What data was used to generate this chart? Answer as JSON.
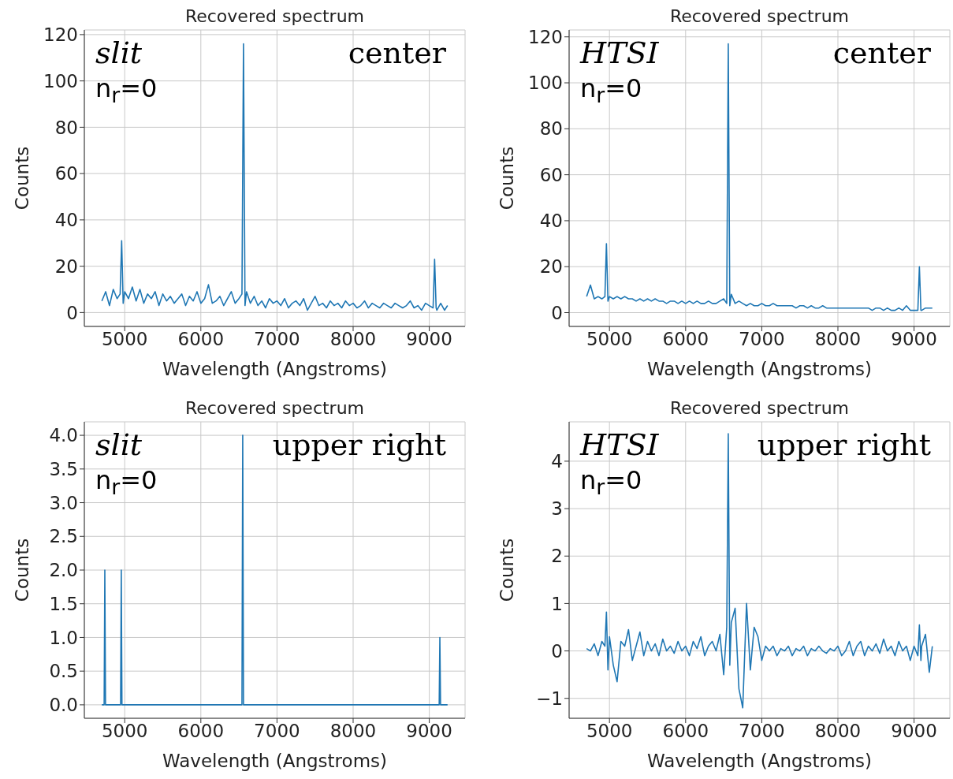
{
  "chart_data": [
    {
      "type": "line",
      "title": "Recovered spectrum",
      "xlabel": "Wavelength (Angstroms)",
      "ylabel": "Counts",
      "annotations": [
        "slit",
        "n$_{r}$=0",
        "center"
      ],
      "grid": true,
      "marker": "none",
      "line_style": "solid",
      "x": [
        4700,
        4750,
        4800,
        4850,
        4900,
        4940,
        4960,
        4980,
        5000,
        5050,
        5100,
        5150,
        5200,
        5250,
        5300,
        5350,
        5400,
        5450,
        5500,
        5550,
        5600,
        5650,
        5700,
        5750,
        5800,
        5850,
        5900,
        5950,
        6000,
        6050,
        6100,
        6150,
        6200,
        6250,
        6300,
        6350,
        6400,
        6450,
        6500,
        6540,
        6560,
        6580,
        6600,
        6650,
        6700,
        6750,
        6800,
        6850,
        6900,
        6950,
        7000,
        7050,
        7100,
        7150,
        7200,
        7250,
        7300,
        7350,
        7400,
        7450,
        7500,
        7550,
        7600,
        7650,
        7700,
        7750,
        7800,
        7850,
        7900,
        7950,
        8000,
        8050,
        8100,
        8150,
        8200,
        8250,
        8300,
        8350,
        8400,
        8450,
        8500,
        8550,
        8600,
        8650,
        8700,
        8750,
        8800,
        8850,
        8900,
        8950,
        9000,
        9050,
        9070,
        9090,
        9100,
        9150,
        9200,
        9240
      ],
      "series": [
        {
          "color": "#1f77b4",
          "values": [
            5,
            9,
            3,
            10,
            6,
            8,
            31,
            4,
            9,
            6,
            11,
            5,
            10,
            4,
            8,
            6,
            9,
            3,
            8,
            5,
            7,
            4,
            6,
            8,
            3,
            7,
            5,
            9,
            4,
            6,
            12,
            4,
            5,
            7,
            3,
            6,
            9,
            4,
            6,
            8,
            116,
            3,
            9,
            4,
            7,
            3,
            5,
            2,
            6,
            4,
            5,
            3,
            6,
            2,
            4,
            5,
            3,
            6,
            1,
            4,
            7,
            3,
            4,
            2,
            5,
            3,
            4,
            2,
            5,
            3,
            4,
            2,
            3,
            5,
            2,
            4,
            3,
            2,
            4,
            3,
            2,
            4,
            3,
            2,
            3,
            5,
            2,
            3,
            1,
            4,
            3,
            2,
            23,
            2,
            1,
            4,
            1,
            3
          ]
        }
      ],
      "xlim": [
        4470,
        9470
      ],
      "xticks": [
        5000,
        6000,
        7000,
        8000,
        9000
      ],
      "ylim": [
        -6,
        122
      ],
      "yticks": [
        0,
        20,
        40,
        60,
        80,
        100,
        120
      ]
    },
    {
      "type": "line",
      "title": "Recovered spectrum",
      "xlabel": "Wavelength (Angstroms)",
      "ylabel": "Counts",
      "annotations": [
        "HTSI",
        "n$_{r}$=0",
        "center"
      ],
      "grid": true,
      "marker": "none",
      "line_style": "solid",
      "x": [
        4700,
        4750,
        4800,
        4850,
        4900,
        4940,
        4960,
        4980,
        5000,
        5050,
        5100,
        5150,
        5200,
        5250,
        5300,
        5350,
        5400,
        5450,
        5500,
        5550,
        5600,
        5650,
        5700,
        5750,
        5800,
        5850,
        5900,
        5950,
        6000,
        6050,
        6100,
        6150,
        6200,
        6250,
        6300,
        6350,
        6400,
        6450,
        6500,
        6540,
        6560,
        6580,
        6600,
        6650,
        6700,
        6750,
        6800,
        6850,
        6900,
        6950,
        7000,
        7050,
        7100,
        7150,
        7200,
        7250,
        7300,
        7350,
        7400,
        7450,
        7500,
        7550,
        7600,
        7650,
        7700,
        7750,
        7800,
        7850,
        7900,
        7950,
        8000,
        8050,
        8100,
        8150,
        8200,
        8250,
        8300,
        8350,
        8400,
        8450,
        8500,
        8550,
        8600,
        8650,
        8700,
        8750,
        8800,
        8850,
        8900,
        8950,
        9000,
        9050,
        9070,
        9090,
        9100,
        9150,
        9200,
        9240
      ],
      "series": [
        {
          "color": "#1f77b4",
          "values": [
            7,
            12,
            6,
            7,
            6,
            7,
            30,
            5,
            7,
            6,
            7,
            6,
            7,
            6,
            6,
            5,
            6,
            5,
            6,
            5,
            6,
            5,
            5,
            4,
            5,
            5,
            4,
            5,
            4,
            5,
            4,
            5,
            4,
            4,
            5,
            4,
            4,
            5,
            6,
            4,
            117,
            3,
            8,
            4,
            5,
            4,
            3,
            4,
            3,
            3,
            4,
            3,
            3,
            4,
            3,
            3,
            3,
            3,
            3,
            2,
            3,
            3,
            2,
            3,
            2,
            2,
            3,
            2,
            2,
            2,
            2,
            2,
            2,
            2,
            2,
            2,
            2,
            2,
            2,
            1,
            2,
            2,
            1,
            2,
            1,
            1,
            2,
            1,
            3,
            1,
            1,
            1,
            20,
            1,
            1,
            2,
            2,
            2
          ]
        }
      ],
      "xlim": [
        4470,
        9470
      ],
      "xticks": [
        5000,
        6000,
        7000,
        8000,
        9000
      ],
      "ylim": [
        -6,
        123
      ],
      "yticks": [
        0,
        20,
        40,
        60,
        80,
        100,
        120
      ]
    },
    {
      "type": "line",
      "title": "Recovered spectrum",
      "xlabel": "Wavelength (Angstroms)",
      "ylabel": "Counts",
      "annotations": [
        "slit",
        "n$_{r}$=0",
        "upper right"
      ],
      "grid": true,
      "marker": "none",
      "line_style": "solid",
      "x": [
        4700,
        4730,
        4739,
        4748,
        4946,
        4955,
        4964,
        6540,
        6550,
        6560,
        9130,
        9139,
        9148,
        9240
      ],
      "series": [
        {
          "color": "#1f77b4",
          "values": [
            0,
            0,
            2,
            0,
            0,
            2,
            0,
            0,
            4,
            0,
            0,
            1,
            0,
            0
          ]
        }
      ],
      "xlim": [
        4470,
        9470
      ],
      "xticks": [
        5000,
        6000,
        7000,
        8000,
        9000
      ],
      "ylim": [
        -0.2,
        4.2
      ],
      "yticks": [
        {
          "value": 0,
          "label": "0.0"
        },
        0.5,
        {
          "value": 1,
          "label": "1.0"
        },
        1.5,
        {
          "value": 2,
          "label": "2.0"
        },
        2.5,
        {
          "value": 3,
          "label": "3.0"
        },
        3.5,
        {
          "value": 4,
          "label": "4.0"
        }
      ]
    },
    {
      "type": "line",
      "title": "Recovered spectrum",
      "xlabel": "Wavelength (Angstroms)",
      "ylabel": "Counts",
      "annotations": [
        "HTSI",
        "n$_{r}$=0",
        "upper right"
      ],
      "grid": true,
      "marker": "none",
      "line_style": "solid",
      "x": [
        4700,
        4750,
        4800,
        4850,
        4900,
        4940,
        4960,
        4980,
        5000,
        5050,
        5100,
        5150,
        5200,
        5250,
        5300,
        5350,
        5400,
        5450,
        5500,
        5550,
        5600,
        5650,
        5700,
        5750,
        5800,
        5850,
        5900,
        5950,
        6000,
        6050,
        6100,
        6150,
        6200,
        6250,
        6300,
        6350,
        6400,
        6450,
        6500,
        6540,
        6560,
        6580,
        6600,
        6650,
        6700,
        6750,
        6800,
        6850,
        6900,
        6950,
        7000,
        7050,
        7100,
        7150,
        7200,
        7250,
        7300,
        7350,
        7400,
        7450,
        7500,
        7550,
        7600,
        7650,
        7700,
        7750,
        7800,
        7850,
        7900,
        7950,
        8000,
        8050,
        8100,
        8150,
        8200,
        8250,
        8300,
        8350,
        8400,
        8450,
        8500,
        8550,
        8600,
        8650,
        8700,
        8750,
        8800,
        8850,
        8900,
        8950,
        9000,
        9050,
        9070,
        9090,
        9100,
        9150,
        9200,
        9240
      ],
      "series": [
        {
          "color": "#1f77b4",
          "values": [
            0.05,
            0,
            0.15,
            -0.1,
            0.2,
            0.1,
            0.82,
            -0.4,
            0.3,
            -0.3,
            -0.65,
            0.2,
            0.1,
            0.45,
            -0.2,
            0.1,
            0.4,
            -0.1,
            0.2,
            0,
            0.15,
            -0.1,
            0.25,
            0,
            0.1,
            -0.05,
            0.2,
            0,
            0.1,
            -0.1,
            0.2,
            0.05,
            0.3,
            -0.1,
            0.1,
            0.2,
            0,
            0.35,
            -0.5,
            0.5,
            4.58,
            -0.3,
            0.6,
            0.9,
            -0.8,
            -1.2,
            1.0,
            -0.4,
            0.5,
            0.3,
            -0.2,
            0.1,
            0,
            0.1,
            -0.1,
            0.05,
            0,
            0.1,
            -0.1,
            0.05,
            0,
            0.1,
            -0.1,
            0.05,
            0,
            0.1,
            0,
            -0.05,
            0.05,
            0,
            0.1,
            -0.1,
            0,
            0.2,
            -0.1,
            0.1,
            0.2,
            -0.1,
            0.1,
            0,
            0.15,
            -0.05,
            0.25,
            0,
            0.1,
            -0.1,
            0.2,
            0,
            0.1,
            -0.2,
            0.1,
            -0.1,
            0.55,
            -0.2,
            0.1,
            0.35,
            -0.45,
            0.1
          ]
        }
      ],
      "xlim": [
        4470,
        9470
      ],
      "xticks": [
        5000,
        6000,
        7000,
        8000,
        9000
      ],
      "ylim": [
        -1.42,
        4.83
      ],
      "yticks": [
        {
          "value": -1,
          "label": "−1"
        },
        0,
        1,
        2,
        3,
        4
      ]
    }
  ]
}
